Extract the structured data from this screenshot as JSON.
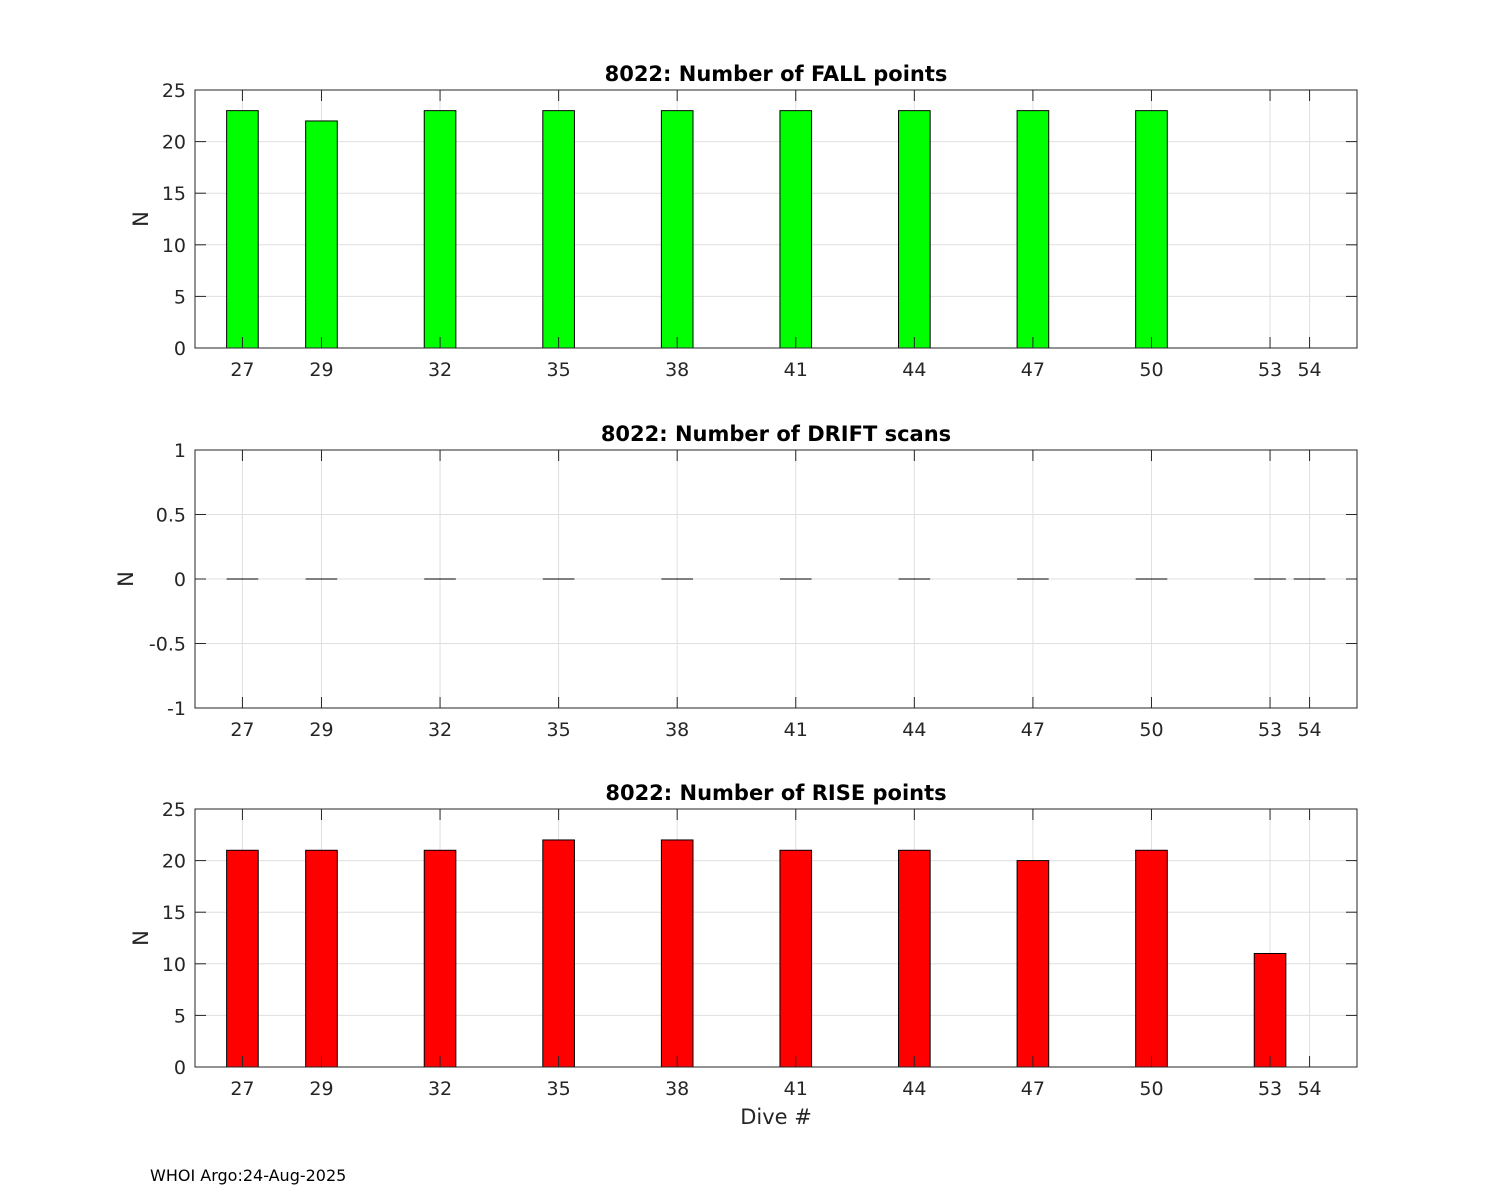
{
  "footer_text": "WHOI Argo:24-Aug-2025",
  "chart_data": [
    {
      "type": "bar",
      "title": "8022: Number of FALL points",
      "xlabel": "",
      "ylabel": "N",
      "x_ticks": [
        27,
        29,
        32,
        35,
        38,
        41,
        44,
        47,
        50,
        53,
        54
      ],
      "xlim": [
        25.8,
        55.2
      ],
      "ylim": [
        0,
        25
      ],
      "y_ticks": [
        "0",
        "5",
        "10",
        "15",
        "20",
        "25"
      ],
      "y_tick_values": [
        0,
        5,
        10,
        15,
        20,
        25
      ],
      "grid": true,
      "bar_color": "#00ff00",
      "x": [
        27,
        29,
        32,
        35,
        38,
        41,
        44,
        47,
        50
      ],
      "values": [
        23,
        22,
        23,
        23,
        23,
        23,
        23,
        23,
        23
      ]
    },
    {
      "type": "bar",
      "title": "8022: Number of DRIFT scans",
      "xlabel": "",
      "ylabel": "N",
      "x_ticks": [
        27,
        29,
        32,
        35,
        38,
        41,
        44,
        47,
        50,
        53,
        54
      ],
      "xlim": [
        25.8,
        55.2
      ],
      "ylim": [
        -1,
        1
      ],
      "y_ticks": [
        "-1",
        "-0.5",
        "0",
        "0.5",
        "1"
      ],
      "y_tick_values": [
        -1,
        -0.5,
        0,
        0.5,
        1
      ],
      "grid": true,
      "bar_color": "#000000",
      "x": [
        27,
        29,
        32,
        35,
        38,
        41,
        44,
        47,
        50,
        53,
        54
      ],
      "values": [
        0,
        0,
        0,
        0,
        0,
        0,
        0,
        0,
        0,
        0,
        0
      ]
    },
    {
      "type": "bar",
      "title": "8022: Number of RISE points",
      "xlabel": "Dive #",
      "ylabel": "N",
      "x_ticks": [
        27,
        29,
        32,
        35,
        38,
        41,
        44,
        47,
        50,
        53,
        54
      ],
      "xlim": [
        25.8,
        55.2
      ],
      "ylim": [
        0,
        25
      ],
      "y_ticks": [
        "0",
        "5",
        "10",
        "15",
        "20",
        "25"
      ],
      "y_tick_values": [
        0,
        5,
        10,
        15,
        20,
        25
      ],
      "grid": true,
      "bar_color": "#ff0000",
      "x": [
        27,
        29,
        32,
        35,
        38,
        41,
        44,
        47,
        50,
        53
      ],
      "values": [
        21,
        21,
        21,
        22,
        22,
        21,
        21,
        20,
        21,
        11
      ]
    }
  ]
}
